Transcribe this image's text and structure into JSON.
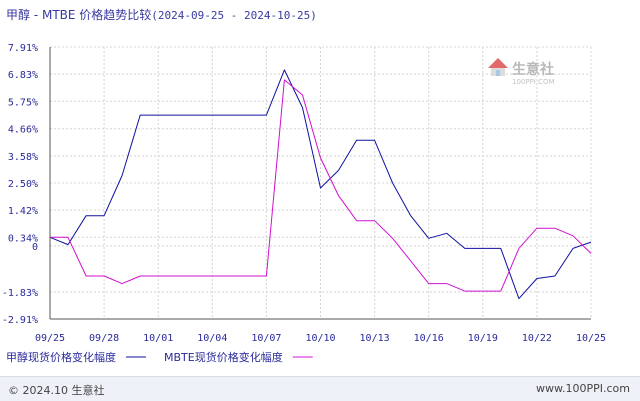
{
  "title": {
    "main": "甲醇 - MTBE 价格趋势比较",
    "range": "(2024-09-25 - 2024-10-25)"
  },
  "watermark": {
    "cn": "生意社",
    "en": "100PPI.COM"
  },
  "footer": {
    "left": "© 2024.10 生意社",
    "right": "www.100PPI.com"
  },
  "chart_data": {
    "type": "line",
    "title": "甲醇 - MTBE 价格趋势比较(2024-09-25 - 2024-10-25)",
    "x_ticks": [
      "09/25",
      "09/28",
      "10/01",
      "10/04",
      "10/07",
      "10/10",
      "10/13",
      "10/16",
      "10/19",
      "10/22",
      "10/25"
    ],
    "y_ticks": [
      "7.91%",
      "6.83%",
      "5.75%",
      "4.66%",
      "3.58%",
      "2.50%",
      "1.42%",
      "0.34%",
      "0",
      "-1.83%",
      "-2.91%"
    ],
    "y_tick_values": [
      7.91,
      6.83,
      5.75,
      4.66,
      3.58,
      2.5,
      1.42,
      0.34,
      0,
      -1.83,
      -2.91
    ],
    "ylim": [
      -2.91,
      7.91
    ],
    "x_range_days": [
      0,
      30
    ],
    "grid": true,
    "legend_position": "bottom-left",
    "series": [
      {
        "name": "甲醇现货价格变化幅度",
        "color": "#1010a0",
        "points": [
          [
            0,
            0.34
          ],
          [
            1,
            0.05
          ],
          [
            2,
            1.2
          ],
          [
            3,
            1.2
          ],
          [
            4,
            2.8
          ],
          [
            5,
            5.2
          ],
          [
            6,
            5.2
          ],
          [
            7,
            5.2
          ],
          [
            8,
            5.2
          ],
          [
            9,
            5.2
          ],
          [
            10,
            5.2
          ],
          [
            11,
            5.2
          ],
          [
            12,
            5.2
          ],
          [
            13,
            7.0
          ],
          [
            14,
            5.5
          ],
          [
            15,
            2.3
          ],
          [
            16,
            3.0
          ],
          [
            17,
            4.2
          ],
          [
            18,
            4.2
          ],
          [
            19,
            2.5
          ],
          [
            20,
            1.2
          ],
          [
            21,
            0.3
          ],
          [
            22,
            0.5
          ],
          [
            23,
            -0.1
          ],
          [
            24,
            -0.1
          ],
          [
            25,
            -0.1
          ],
          [
            26,
            -2.1
          ],
          [
            27,
            -1.3
          ],
          [
            28,
            -1.2
          ],
          [
            29,
            -0.1
          ],
          [
            30,
            0.15
          ]
        ]
      },
      {
        "name": "MBTE现货价格变化幅度",
        "color": "#d010d0",
        "points": [
          [
            0,
            0.34
          ],
          [
            1,
            0.34
          ],
          [
            2,
            -1.2
          ],
          [
            3,
            -1.2
          ],
          [
            4,
            -1.5
          ],
          [
            5,
            -1.2
          ],
          [
            6,
            -1.2
          ],
          [
            7,
            -1.2
          ],
          [
            8,
            -1.2
          ],
          [
            9,
            -1.2
          ],
          [
            10,
            -1.2
          ],
          [
            11,
            -1.2
          ],
          [
            12,
            -1.2
          ],
          [
            13,
            6.6
          ],
          [
            14,
            6.0
          ],
          [
            15,
            3.5
          ],
          [
            16,
            2.0
          ],
          [
            17,
            1.0
          ],
          [
            18,
            1.0
          ],
          [
            19,
            0.3
          ],
          [
            20,
            -0.6
          ],
          [
            21,
            -1.5
          ],
          [
            22,
            -1.5
          ],
          [
            23,
            -1.8
          ],
          [
            24,
            -1.8
          ],
          [
            25,
            -1.8
          ],
          [
            26,
            -0.1
          ],
          [
            27,
            0.7
          ],
          [
            28,
            0.7
          ],
          [
            29,
            0.4
          ],
          [
            30,
            -0.3
          ]
        ]
      }
    ]
  }
}
